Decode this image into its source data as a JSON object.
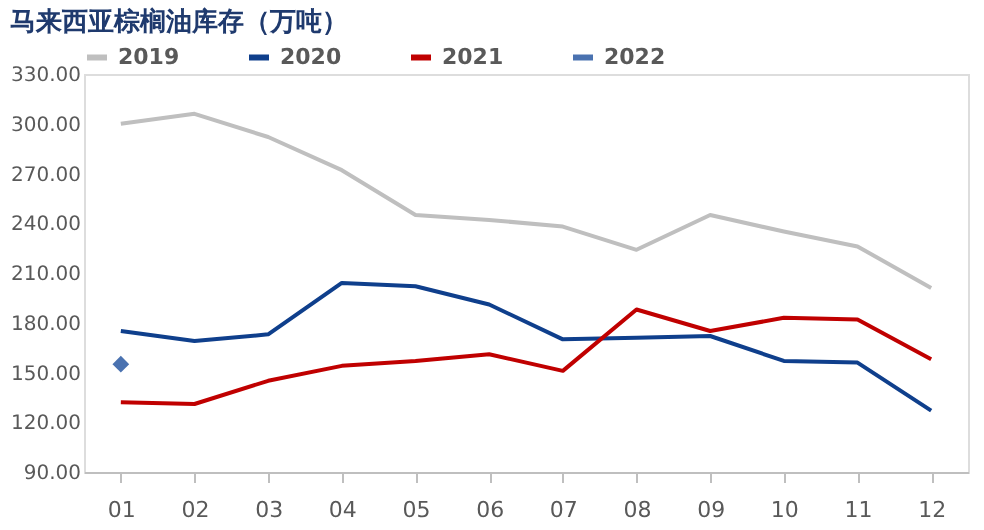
{
  "chart_data": {
    "type": "line",
    "title": "马来西亚棕榈油库存（万吨）",
    "categories": [
      "01",
      "02",
      "03",
      "04",
      "05",
      "06",
      "07",
      "08",
      "09",
      "10",
      "11",
      "12"
    ],
    "ylim": [
      90,
      330
    ],
    "yticks": [
      {
        "value": 90,
        "label": "90.00"
      },
      {
        "value": 120,
        "label": "120.00"
      },
      {
        "value": 150,
        "label": "150.00"
      },
      {
        "value": 180,
        "label": "180.00"
      },
      {
        "value": 210,
        "label": "210.00"
      },
      {
        "value": 240,
        "label": "240.00"
      },
      {
        "value": 270,
        "label": "270.00"
      },
      {
        "value": 300,
        "label": "300.00"
      },
      {
        "value": 330,
        "label": "330.00"
      }
    ],
    "grid": false,
    "legend": "top",
    "series": [
      {
        "name": "2019",
        "color": "#bfbfbf",
        "marker": "none",
        "values": [
          300,
          306,
          292,
          272,
          245,
          242,
          238,
          224,
          245,
          235,
          226,
          201
        ]
      },
      {
        "name": "2020",
        "color": "#0f3f8c",
        "marker": "none",
        "values": [
          175,
          169,
          173,
          204,
          202,
          191,
          170,
          171,
          172,
          157,
          156,
          127
        ]
      },
      {
        "name": "2021",
        "color": "#c00000",
        "marker": "none",
        "values": [
          132,
          131,
          145,
          154,
          157,
          161,
          151,
          188,
          175,
          183,
          182,
          158
        ]
      },
      {
        "name": "2022",
        "color": "#4a72b0",
        "marker": "diamond",
        "values": [
          155,
          null,
          null,
          null,
          null,
          null,
          null,
          null,
          null,
          null,
          null,
          null
        ]
      }
    ]
  }
}
